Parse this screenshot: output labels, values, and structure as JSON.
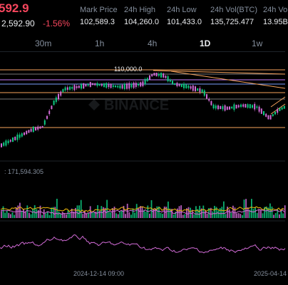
{
  "header": {
    "last_price": "592.9",
    "prev_price": "2,592.90",
    "change_pct": "-1.56%",
    "stats": [
      {
        "label": "Mark Price",
        "value": "102,589.3"
      },
      {
        "label": "24h High",
        "value": "104,260.0"
      },
      {
        "label": "24h Low",
        "value": "101,433.0"
      },
      {
        "label": "24h Vol(BTC)",
        "value": "135,725.477"
      },
      {
        "label": "24h Vo",
        "value": "13.95B"
      }
    ]
  },
  "timeframes": [
    "30m",
    "1h",
    "4h",
    "1D",
    "1w"
  ],
  "active_timeframe": "1D",
  "chart": {
    "level_label": "110,000.0",
    "volume_label": ": 171,594.305",
    "date_labels": [
      "2024-12-14 09:00",
      "2025-04-14"
    ],
    "watermark": "BINANCE"
  },
  "colors": {
    "up": "#0ecb81",
    "down": "#f6465d",
    "candle_up": "#d16bd6",
    "level_line": "#f0b90b",
    "trend_line": "#f7a35c",
    "rsi": "#d16bd6"
  }
}
